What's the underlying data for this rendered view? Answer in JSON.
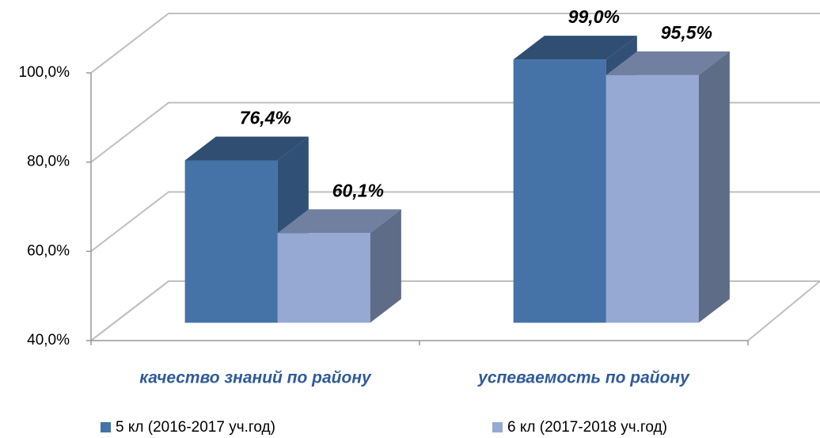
{
  "chart_data": {
    "type": "bar3d",
    "categories": [
      "качество знаний по району",
      "успеваемость по району"
    ],
    "series": [
      {
        "name": "5 кл (2016-2017 уч.год)",
        "color": "#4572a7",
        "values": [
          76.4,
          99.0
        ],
        "value_labels": [
          "76,4%",
          "99,0%"
        ]
      },
      {
        "name": "6 кл (2017-2018 уч.год)",
        "color": "#95a9d3",
        "values": [
          60.1,
          95.5
        ],
        "value_labels": [
          "60,1%",
          "95,5%"
        ]
      }
    ],
    "ylim": [
      40,
      100
    ],
    "yticks": [
      {
        "value": 40,
        "label": "40,0%"
      },
      {
        "value": 60,
        "label": "60,0%"
      },
      {
        "value": 80,
        "label": "80,0%"
      },
      {
        "value": 100,
        "label": "100,0%"
      }
    ],
    "grid": true,
    "legend": "bottom"
  }
}
